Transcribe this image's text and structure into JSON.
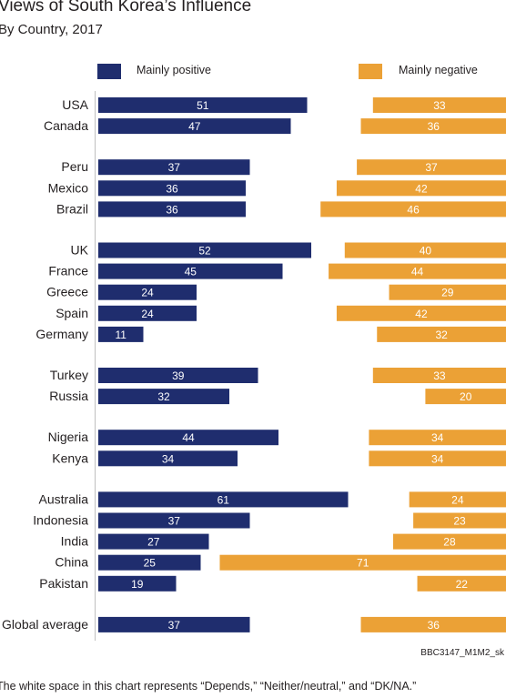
{
  "title": "Views of South Korea’s Influence",
  "subtitle": "By Country, 2017",
  "source_note": "BBC3147_M1M2_sk",
  "footnote": "The white space in this chart represents “Depends,” “Neither/neutral,” and “DK/NA.”",
  "legend": {
    "positive_label": "Mainly positive",
    "negative_label": "Mainly negative"
  },
  "colors": {
    "positive": "#1f2d6e",
    "negative": "#eba136",
    "text": "#231f20"
  },
  "chart_data": {
    "type": "bar",
    "orientation": "horizontal-diverging",
    "title": "Views of South Korea’s Influence",
    "subtitle": "By Country, 2017",
    "categories": [
      "USA",
      "Canada",
      "Peru",
      "Mexico",
      "Brazil",
      "UK",
      "France",
      "Greece",
      "Spain",
      "Germany",
      "Turkey",
      "Russia",
      "Nigeria",
      "Kenya",
      "Australia",
      "Indonesia",
      "India",
      "China",
      "Pakistan",
      "Global average"
    ],
    "groups": [
      [
        "USA",
        "Canada"
      ],
      [
        "Peru",
        "Mexico",
        "Brazil"
      ],
      [
        "UK",
        "France",
        "Greece",
        "Spain",
        "Germany"
      ],
      [
        "Turkey",
        "Russia"
      ],
      [
        "Nigeria",
        "Kenya"
      ],
      [
        "Australia",
        "Indonesia",
        "India",
        "China",
        "Pakistan"
      ],
      [
        "Global average"
      ]
    ],
    "series": [
      {
        "name": "Mainly positive",
        "values": [
          51,
          47,
          37,
          36,
          36,
          52,
          45,
          24,
          24,
          11,
          39,
          32,
          44,
          34,
          61,
          37,
          27,
          25,
          19,
          37
        ]
      },
      {
        "name": "Mainly negative",
        "values": [
          33,
          36,
          37,
          42,
          46,
          40,
          44,
          29,
          42,
          32,
          33,
          20,
          34,
          34,
          24,
          23,
          28,
          71,
          22,
          36
        ]
      }
    ],
    "legend_position": "top",
    "grid": false
  }
}
